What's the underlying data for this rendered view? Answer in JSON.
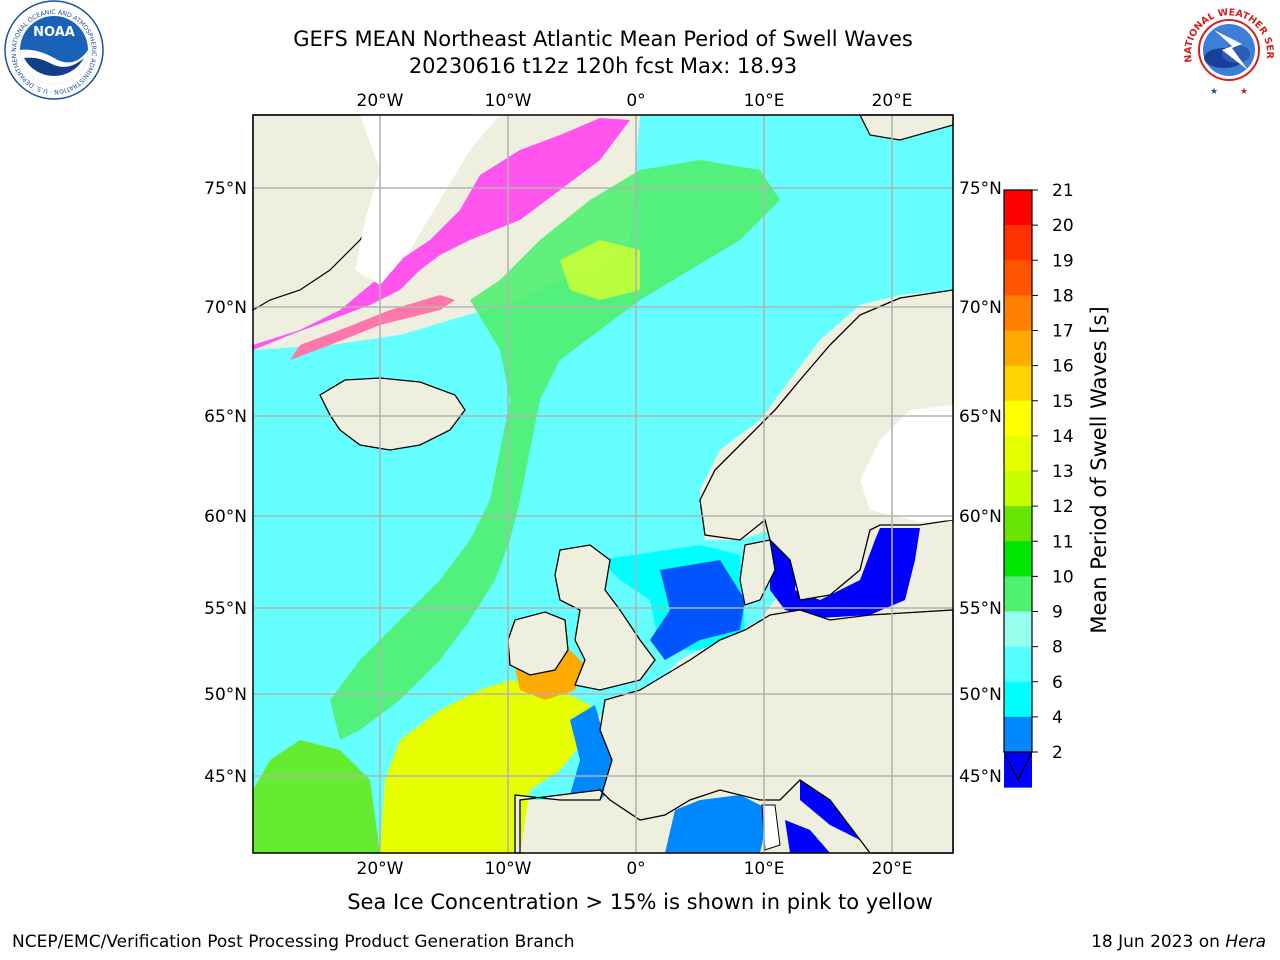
{
  "header": {
    "title": "GEFS MEAN Northeast Atlantic Mean Period of Swell Waves",
    "subtitle": "20230616 t12z 120h fcst   Max: 18.93"
  },
  "logos": {
    "left": {
      "name": "noaa-logo",
      "text": "NOAA",
      "ring_text": "NATIONAL OCEANIC AND ATMOSPHERIC ADMINISTRATION · U.S. DEPARTMENT OF COMMERCE"
    },
    "right": {
      "name": "nws-logo",
      "ring_text": "NATIONAL WEATHER SERVICE"
    }
  },
  "map": {
    "lon_labels": [
      "20°W",
      "10°W",
      "0°",
      "10°E",
      "20°E"
    ],
    "lat_labels": [
      "75°N",
      "70°N",
      "65°N",
      "60°N",
      "55°N",
      "50°N",
      "45°N"
    ],
    "colors": {
      "land": "#efefdf",
      "border": "#000000",
      "grid": "#b3b3b3"
    }
  },
  "colorbar": {
    "label": "Mean Period of Swell Waves [s]",
    "ticks": [
      "21",
      "20",
      "19",
      "18",
      "17",
      "16",
      "15",
      "14",
      "13",
      "12",
      "11",
      "10",
      "9",
      "8",
      "6",
      "4",
      "2"
    ],
    "colors": [
      "#ff0000",
      "#ff3300",
      "#ff5500",
      "#ff7f00",
      "#ffaa00",
      "#ffd400",
      "#ffff00",
      "#e5ff00",
      "#c8ff00",
      "#66e600",
      "#00e600",
      "#50f070",
      "#99ffee",
      "#55ffff",
      "#00ffff",
      "#0088ff",
      "#0000ff"
    ],
    "extend_color": "#0000ff"
  },
  "note": "Sea Ice Concentration > 15% is shown in pink to yellow",
  "footer": {
    "left": "NCEP/EMC/Verification Post Processing Product Generation Branch",
    "right_prefix": "18 Jun 2023 on ",
    "right_em": "Hera"
  }
}
